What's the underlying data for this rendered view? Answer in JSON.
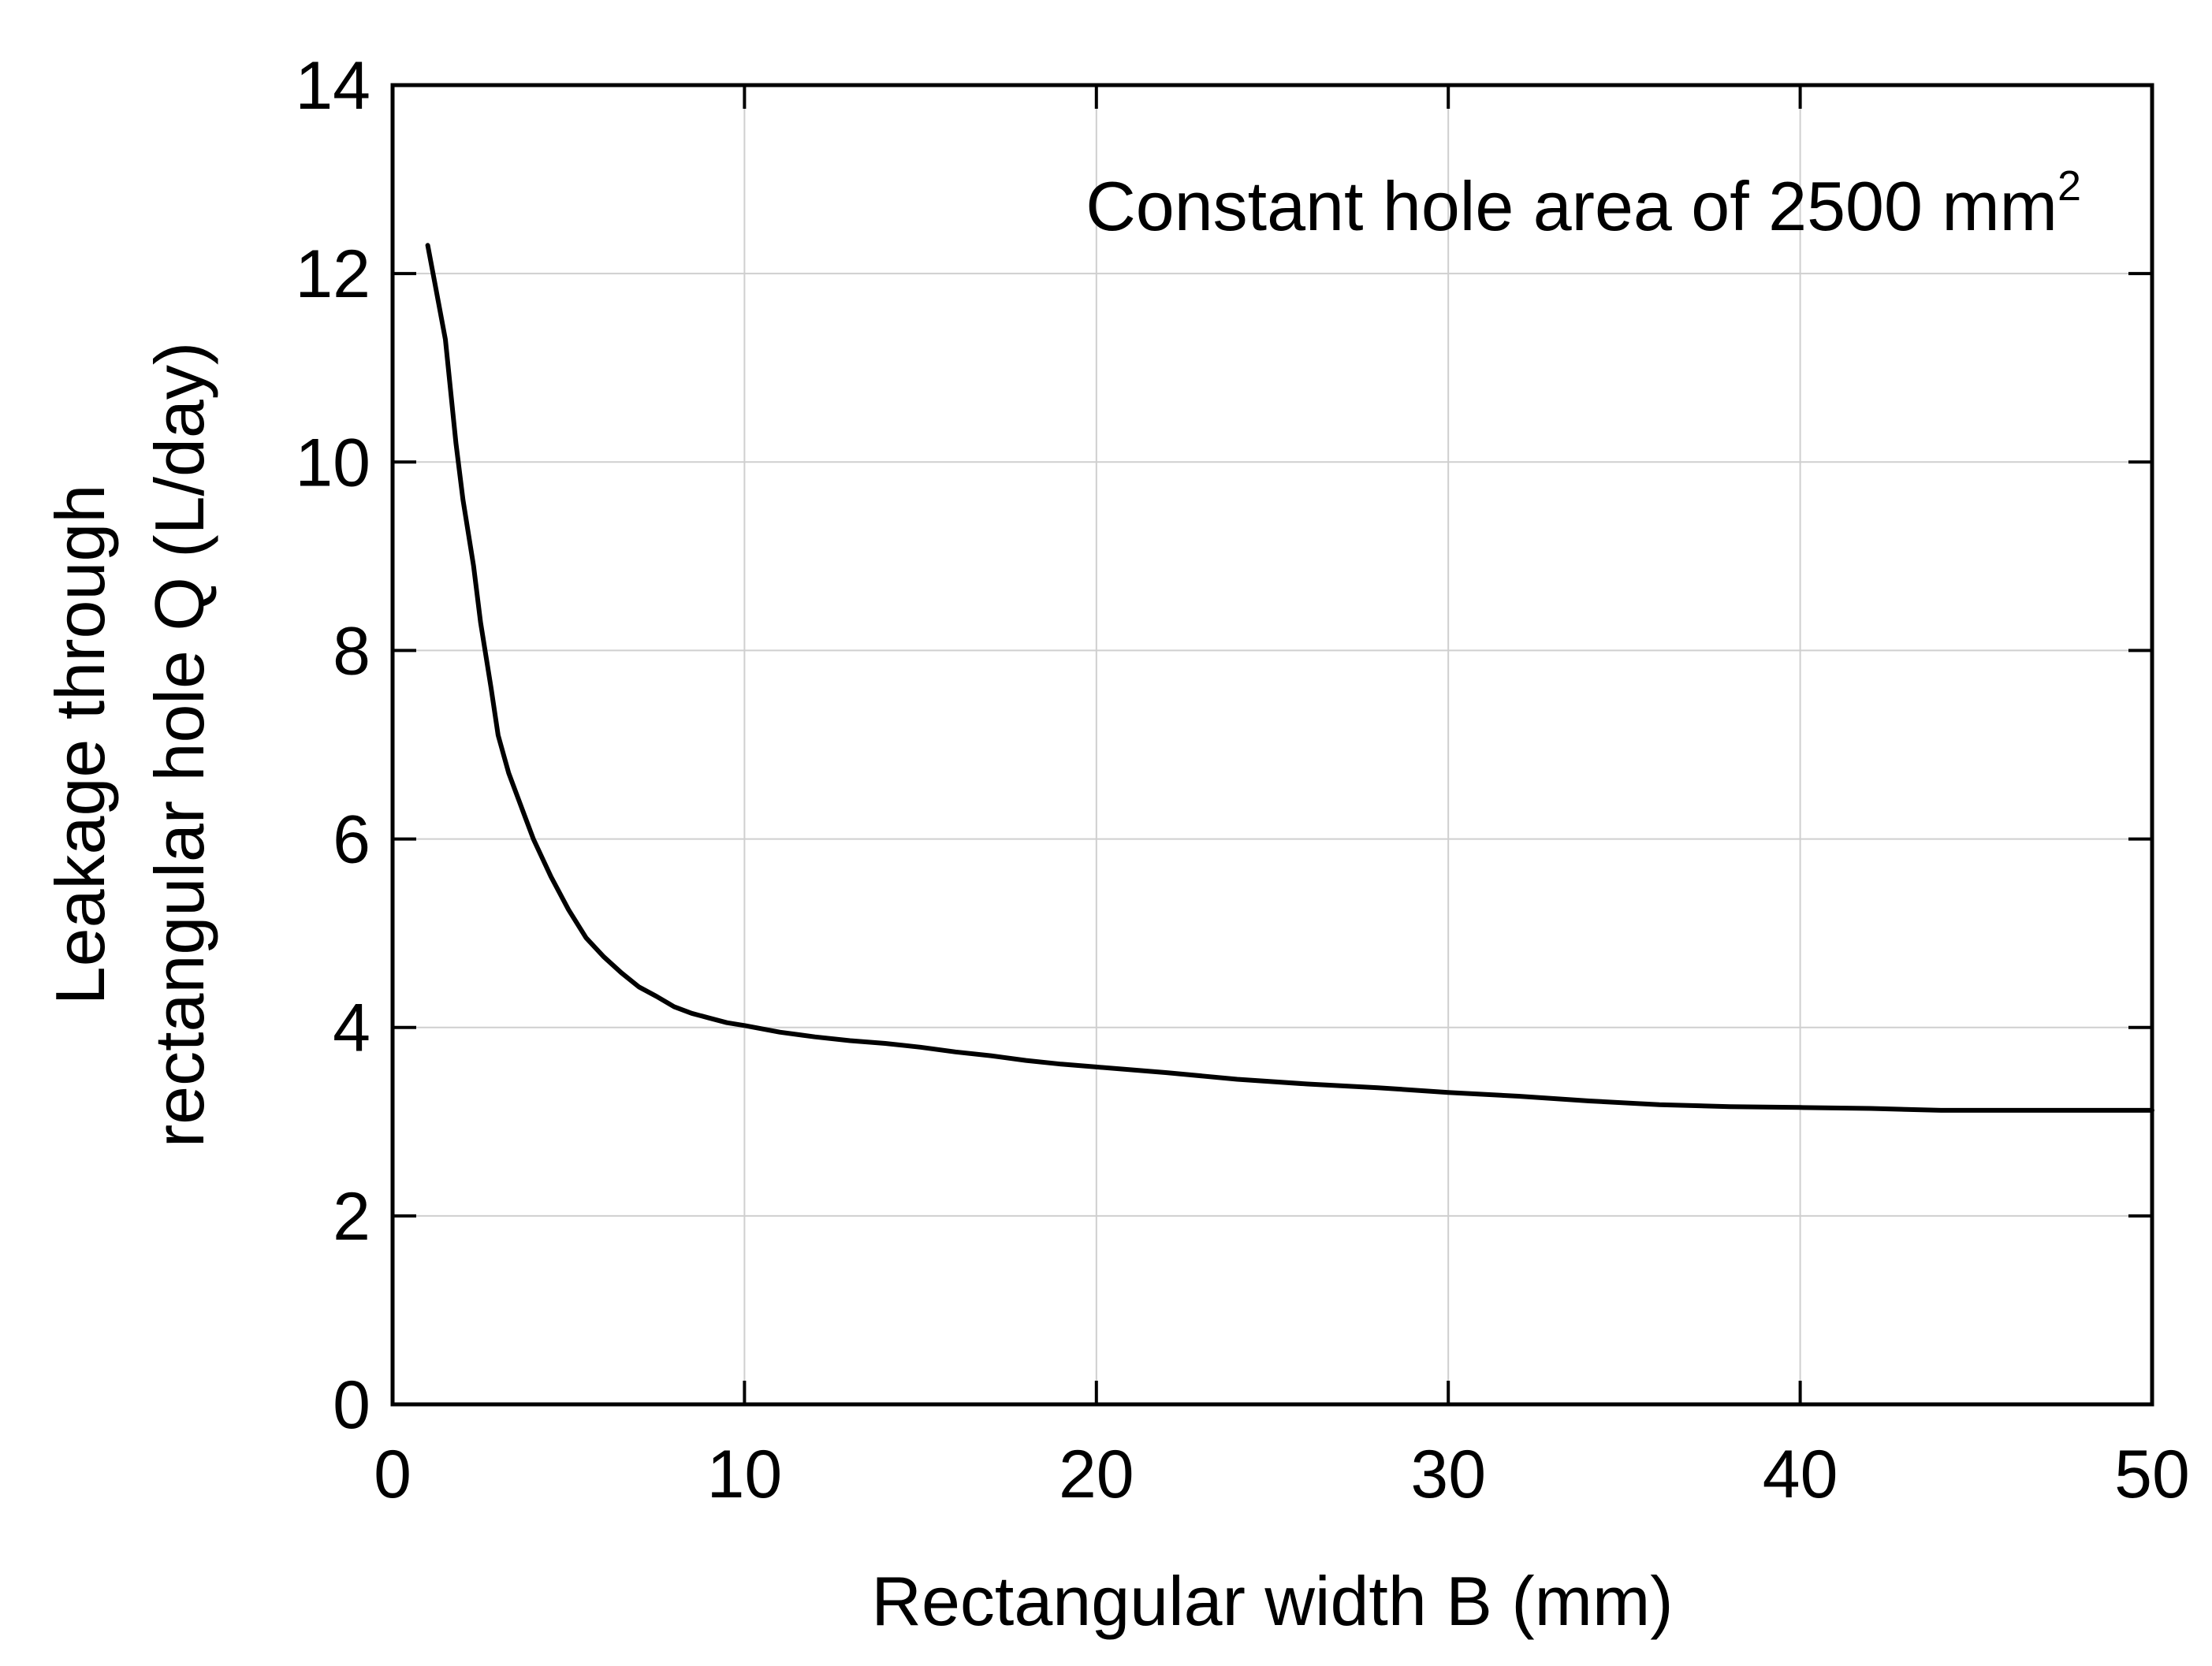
{
  "chart_data": {
    "type": "line",
    "title": "",
    "xlabel": "Rectangular width B (mm)",
    "ylabel_lines": [
      "Leakage through",
      "rectangular hole Q (L/day)"
    ],
    "xlim": [
      0,
      50
    ],
    "ylim": [
      0,
      14
    ],
    "xticks": [
      0,
      10,
      20,
      30,
      40,
      50
    ],
    "yticks": [
      0,
      2,
      4,
      6,
      8,
      10,
      12,
      14
    ],
    "grid": true,
    "annotation": {
      "text": "Constant hole area of 2500 mm",
      "superscript": "2"
    },
    "series": [
      {
        "x": [
          1,
          1.2,
          1.5,
          1.8,
          2,
          2.3,
          2.5,
          2.8,
          3,
          3.3,
          3.5,
          3.8,
          4,
          4.5,
          5,
          5.5,
          6,
          6.5,
          7,
          7.5,
          8,
          8.5,
          9,
          9.5,
          10,
          11,
          12,
          13,
          14,
          15,
          16,
          17,
          18,
          19,
          20,
          22,
          24,
          26,
          28,
          30,
          32,
          34,
          36,
          38,
          40,
          42,
          44,
          46,
          48,
          50
        ],
        "y": [
          12.3,
          11.9,
          11.3,
          10.2,
          9.6,
          8.9,
          8.3,
          7.6,
          7.1,
          6.7,
          6.5,
          6.2,
          6.0,
          5.6,
          5.25,
          4.95,
          4.75,
          4.58,
          4.43,
          4.33,
          4.22,
          4.15,
          4.1,
          4.05,
          4.02,
          3.95,
          3.9,
          3.86,
          3.83,
          3.79,
          3.74,
          3.7,
          3.65,
          3.61,
          3.58,
          3.52,
          3.45,
          3.4,
          3.36,
          3.31,
          3.27,
          3.22,
          3.18,
          3.16,
          3.15,
          3.14,
          3.12,
          3.12,
          3.12,
          3.12
        ]
      }
    ]
  }
}
